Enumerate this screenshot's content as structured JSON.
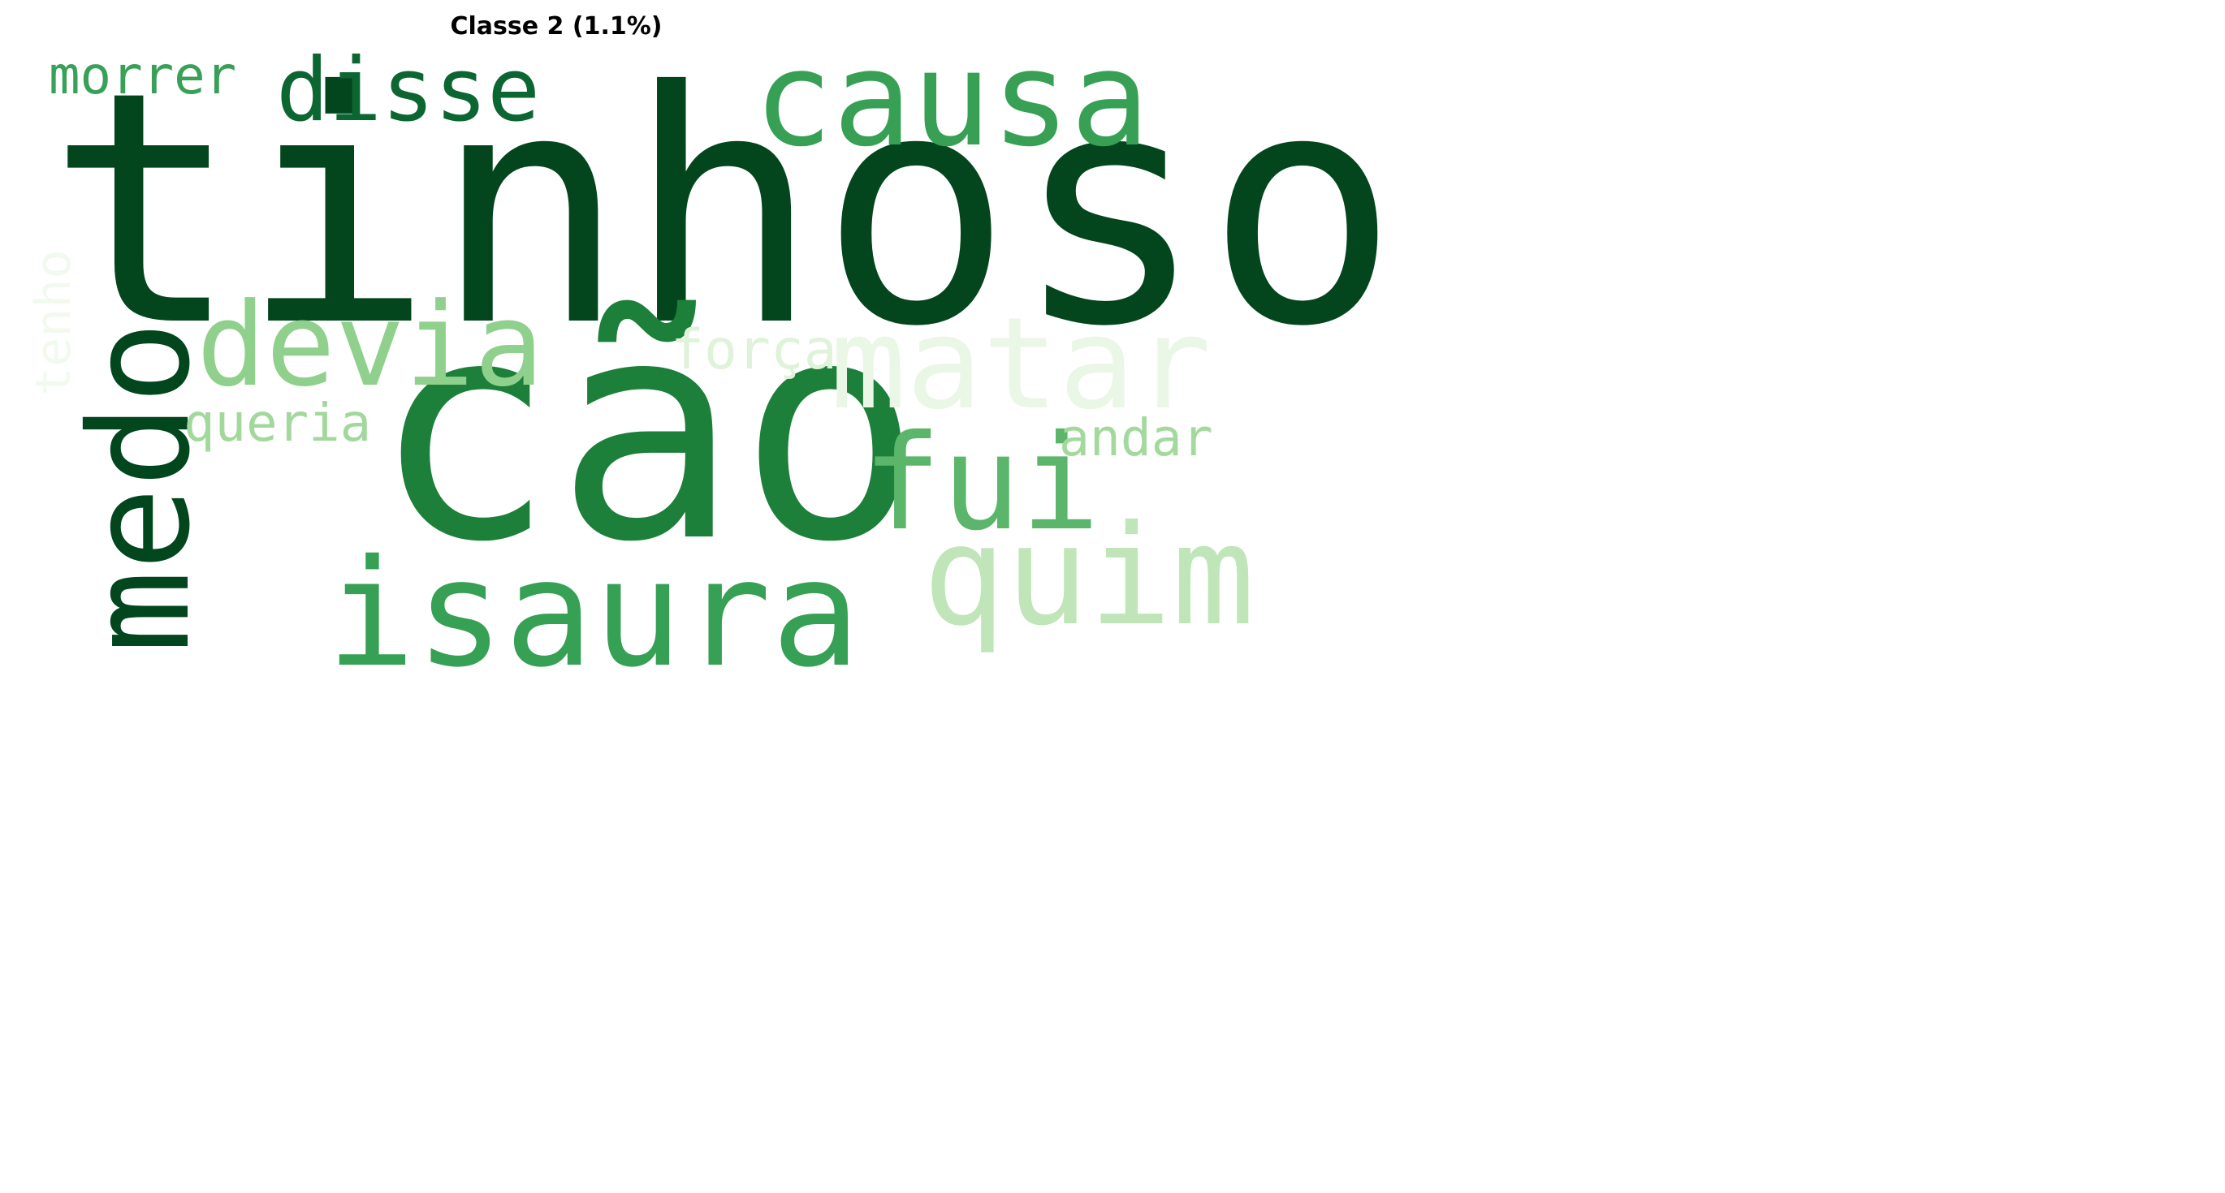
{
  "title": "Classe 2 (1.1%)",
  "words": [
    {
      "text": "tinhoso",
      "color": "#03461e",
      "orientation": "horizontal"
    },
    {
      "text": "cão",
      "color": "#1c7f3a",
      "orientation": "horizontal"
    },
    {
      "text": "medo",
      "color": "#02461e",
      "orientation": "vertical"
    },
    {
      "text": "causa",
      "color": "#37a055",
      "orientation": "horizontal"
    },
    {
      "text": "isaura",
      "color": "#36a055",
      "orientation": "horizontal"
    },
    {
      "text": "disse",
      "color": "#0b6631",
      "orientation": "horizontal"
    },
    {
      "text": "devia",
      "color": "#8fd08c",
      "orientation": "horizontal"
    },
    {
      "text": "matar",
      "color": "#eaf6e6",
      "orientation": "horizontal"
    },
    {
      "text": "fui",
      "color": "#5bb56a",
      "orientation": "horizontal"
    },
    {
      "text": "quim",
      "color": "#bfe5b8",
      "orientation": "horizontal"
    },
    {
      "text": "morrer",
      "color": "#39a057",
      "orientation": "horizontal"
    },
    {
      "text": "força",
      "color": "#dff2da",
      "orientation": "horizontal"
    },
    {
      "text": "queria",
      "color": "#a3d89d",
      "orientation": "horizontal"
    },
    {
      "text": "andar",
      "color": "#a4d99e",
      "orientation": "horizontal"
    },
    {
      "text": "tenho",
      "color": "#f2faf0",
      "orientation": "vertical"
    }
  ]
}
